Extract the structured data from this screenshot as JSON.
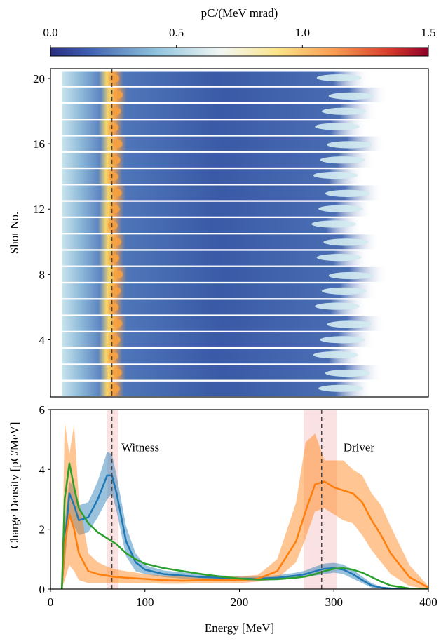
{
  "chart_data": [
    {
      "type": "colorbar",
      "label": "pC/(MeV mrad)",
      "xlim": [
        0,
        1.5
      ],
      "xticks": [
        {
          "value": 0,
          "label": "0.0"
        },
        {
          "value": 0.5,
          "label": "0.5"
        },
        {
          "value": 1,
          "label": "1.0"
        },
        {
          "value": 1.5,
          "label": "1.5"
        }
      ]
    },
    {
      "type": "heatmap",
      "ylabel": "Shot No.",
      "xlim": [
        0,
        400
      ],
      "ylim": [
        0.5,
        20.6
      ],
      "yticks": [
        4,
        8,
        12,
        16,
        20
      ],
      "vlines": [
        65
      ]
    },
    {
      "type": "line",
      "xlabel": "Energy [MeV]",
      "ylabel": "Charge Density [pC/MeV]",
      "xlim": [
        0,
        400
      ],
      "xticks": [
        0,
        100,
        200,
        300,
        400
      ],
      "ylim": [
        0,
        6
      ],
      "yticks": [
        0,
        2,
        4,
        6
      ],
      "vlines": [
        65,
        287
      ],
      "spans": [
        [
          60,
          72
        ],
        [
          268,
          303
        ]
      ],
      "annotations": [
        {
          "text": "Witness",
          "x": 75,
          "y": 4.6
        },
        {
          "text": "Driver",
          "x": 310,
          "y": 4.6
        }
      ],
      "x": [
        12,
        15,
        20,
        25,
        30,
        40,
        50,
        60,
        65,
        70,
        80,
        90,
        100,
        120,
        140,
        160,
        180,
        200,
        220,
        240,
        260,
        270,
        280,
        290,
        300,
        310,
        320,
        330,
        340,
        350,
        360,
        380,
        400
      ],
      "series": [
        {
          "color": "#1f77b4",
          "values": [
            0,
            1.5,
            3.2,
            2.8,
            2.3,
            2.4,
            3.0,
            3.8,
            3.8,
            3.2,
            1.6,
            0.9,
            0.65,
            0.5,
            0.45,
            0.4,
            0.38,
            0.35,
            0.35,
            0.38,
            0.45,
            0.5,
            0.6,
            0.68,
            0.7,
            0.65,
            0.5,
            0.3,
            0.12,
            0.05,
            0.02,
            0,
            0
          ],
          "lower": [
            0,
            0.8,
            2.5,
            2.1,
            1.8,
            1.9,
            2.4,
            3.0,
            3.2,
            2.6,
            1.1,
            0.6,
            0.5,
            0.4,
            0.35,
            0.32,
            0.3,
            0.28,
            0.28,
            0.3,
            0.35,
            0.4,
            0.45,
            0.5,
            0.55,
            0.5,
            0.35,
            0.2,
            0.05,
            0.02,
            0,
            0,
            0
          ],
          "upper": [
            0,
            2.2,
            3.6,
            3.4,
            2.8,
            2.9,
            3.6,
            4.6,
            4.5,
            3.8,
            2.1,
            1.2,
            0.8,
            0.62,
            0.56,
            0.5,
            0.46,
            0.42,
            0.42,
            0.46,
            0.55,
            0.62,
            0.75,
            0.85,
            0.88,
            0.82,
            0.65,
            0.42,
            0.2,
            0.08,
            0.03,
            0,
            0
          ]
        },
        {
          "color": "#ff7f0e",
          "values": [
            0,
            1.5,
            2.5,
            2.0,
            1.2,
            0.6,
            0.5,
            0.45,
            0.42,
            0.4,
            0.38,
            0.36,
            0.34,
            0.3,
            0.28,
            0.3,
            0.3,
            0.3,
            0.35,
            0.6,
            1.6,
            2.6,
            3.5,
            3.6,
            3.4,
            3.3,
            3.2,
            2.9,
            2.3,
            1.8,
            1.2,
            0.4,
            0.05
          ],
          "lower": [
            0,
            0.3,
            0.8,
            0.6,
            0.3,
            0.2,
            0.2,
            0.2,
            0.2,
            0.2,
            0.2,
            0.2,
            0.2,
            0.18,
            0.18,
            0.2,
            0.2,
            0.2,
            0.25,
            0.35,
            0.9,
            1.7,
            2.6,
            2.7,
            2.5,
            2.3,
            2.2,
            1.8,
            1.3,
            0.9,
            0.5,
            0.1,
            0
          ],
          "upper": [
            0,
            5.6,
            4.5,
            5.5,
            3.0,
            1.2,
            0.9,
            0.75,
            0.7,
            0.65,
            0.6,
            0.55,
            0.5,
            0.45,
            0.42,
            0.42,
            0.42,
            0.42,
            0.48,
            1.0,
            2.9,
            4.9,
            5.2,
            4.3,
            4.3,
            4.3,
            4.0,
            3.8,
            3.2,
            2.8,
            2.1,
            0.8,
            0.1
          ]
        },
        {
          "color": "#2ca02c",
          "values": [
            0,
            3.0,
            4.2,
            3.4,
            2.7,
            2.2,
            1.9,
            1.7,
            1.6,
            1.5,
            1.2,
            1.0,
            0.85,
            0.7,
            0.6,
            0.5,
            0.42,
            0.35,
            0.32,
            0.33,
            0.38,
            0.42,
            0.5,
            0.6,
            0.68,
            0.7,
            0.65,
            0.55,
            0.4,
            0.25,
            0.12,
            0.02,
            0
          ]
        }
      ]
    }
  ]
}
